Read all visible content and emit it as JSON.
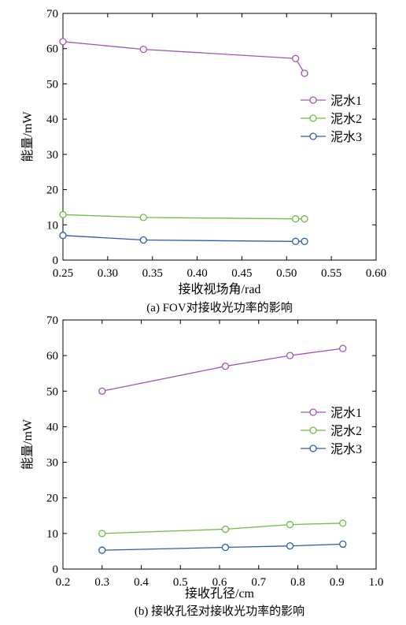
{
  "chart_data": [
    {
      "type": "line",
      "xlabel": "接收视场角/rad",
      "ylabel": "能量/mW",
      "caption": "(a) FOV对接收光功率的影响",
      "xlim": [
        0.25,
        0.6
      ],
      "ylim": [
        0,
        70
      ],
      "xticks": [
        "0.25",
        "0.30",
        "0.35",
        "0.40",
        "0.45",
        "0.50",
        "0.55",
        "0.60"
      ],
      "yticks": [
        "0",
        "10",
        "20",
        "30",
        "40",
        "50",
        "60",
        "70"
      ],
      "x": [
        0.25,
        0.34,
        0.51,
        0.52
      ],
      "legend_position": "right",
      "series": [
        {
          "name": "泥水1",
          "color": "#a354b3",
          "values": [
            62.0,
            59.8,
            57.2,
            53.0
          ]
        },
        {
          "name": "泥水2",
          "color": "#6cbd45",
          "values": [
            12.9,
            12.1,
            11.7,
            11.7
          ]
        },
        {
          "name": "泥水3",
          "color": "#2e5ea8",
          "values": [
            7.0,
            5.7,
            5.3,
            5.3
          ]
        }
      ]
    },
    {
      "type": "line",
      "xlabel": "接收孔径/cm",
      "ylabel": "能量/mW",
      "caption": "(b) 接收孔径对接收光功率的影响",
      "xlim": [
        0.2,
        1.0
      ],
      "ylim": [
        0,
        70
      ],
      "xticks": [
        "0.2",
        "0.3",
        "0.4",
        "0.5",
        "0.6",
        "0.7",
        "0.8",
        "0.9",
        "1.0"
      ],
      "yticks": [
        "0",
        "10",
        "20",
        "30",
        "40",
        "50",
        "60",
        "70"
      ],
      "x": [
        0.3,
        0.615,
        0.78,
        0.915
      ],
      "legend_position": "right",
      "series": [
        {
          "name": "泥水1",
          "color": "#a354b3",
          "values": [
            50.0,
            57.0,
            60.0,
            62.0
          ]
        },
        {
          "name": "泥水2",
          "color": "#6cbd45",
          "values": [
            10.0,
            11.2,
            12.5,
            12.9
          ]
        },
        {
          "name": "泥水3",
          "color": "#2e5ea8",
          "values": [
            5.3,
            6.1,
            6.5,
            7.0
          ]
        }
      ]
    }
  ]
}
